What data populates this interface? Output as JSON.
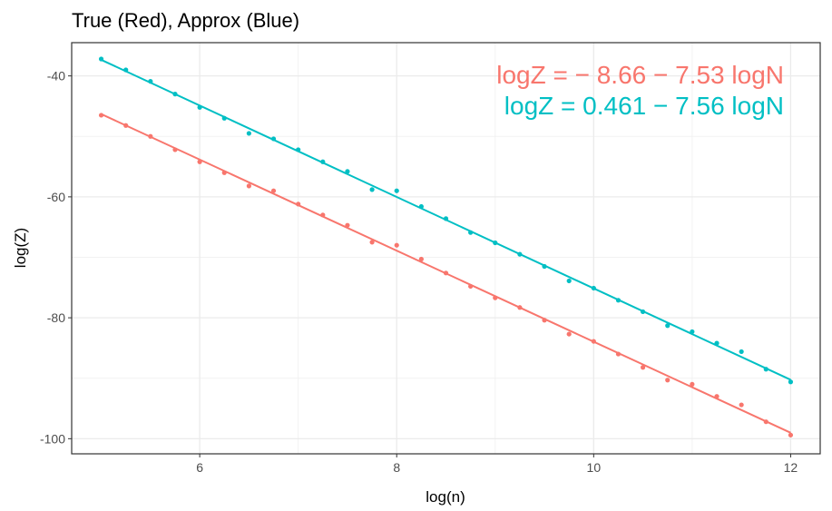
{
  "chart_data": {
    "type": "scatter",
    "title": "True (Red), Approx (Blue)",
    "xlabel": "log(n)",
    "ylabel": "log(Z)",
    "xlim": [
      4.7,
      12.3
    ],
    "ylim": [
      -102.5,
      -34.5
    ],
    "x_ticks": [
      6,
      8,
      10,
      12
    ],
    "x_tick_labels": [
      "6",
      "8",
      "10",
      "12"
    ],
    "y_ticks": [
      -100,
      -80,
      -60,
      -40
    ],
    "y_tick_labels": [
      "-100",
      "-80",
      "-60",
      "-40"
    ],
    "grid": true,
    "legend": "none",
    "series": [
      {
        "color": "#f8766d",
        "fit": {
          "intercept": -8.66,
          "slope": -7.53
        },
        "equation": "logZ = − 8.66 − 7.53 logN",
        "x": [
          5,
          5.25,
          5.5,
          5.75,
          6,
          6.25,
          6.5,
          6.75,
          7,
          7.25,
          7.5,
          7.75,
          8,
          8.25,
          8.5,
          8.75,
          9,
          9.25,
          9.5,
          9.75,
          10,
          10.25,
          10.5,
          10.75,
          11,
          11.25,
          11.5,
          11.75,
          12
        ],
        "y": [
          -46.5,
          -48.2,
          -50,
          -52.2,
          -54.2,
          -56,
          -58.2,
          -59,
          -61.2,
          -63,
          -64.7,
          -67.5,
          -68,
          -70.3,
          -72.6,
          -74.8,
          -76.7,
          -78.3,
          -80.4,
          -82.7,
          -83.9,
          -86,
          -88.2,
          -90.3,
          -91,
          -93,
          -94.4,
          -97.2,
          -99.4
        ]
      },
      {
        "color": "#00bfc4",
        "fit": {
          "intercept": 0.461,
          "slope": -7.56
        },
        "equation": "logZ = 0.461 − 7.56 logN",
        "x": [
          5,
          5.25,
          5.5,
          5.75,
          6,
          6.25,
          6.5,
          6.75,
          7,
          7.25,
          7.5,
          7.75,
          8,
          8.25,
          8.5,
          8.75,
          9,
          9.25,
          9.5,
          9.75,
          10,
          10.25,
          10.5,
          10.75,
          11,
          11.25,
          11.5,
          11.75,
          12
        ],
        "y": [
          -37.2,
          -39,
          -40.9,
          -43,
          -45.2,
          -47,
          -49.5,
          -50.4,
          -52.2,
          -54.2,
          -55.8,
          -58.8,
          -59,
          -61.6,
          -63.6,
          -65.9,
          -67.6,
          -69.5,
          -71.5,
          -73.9,
          -75.1,
          -77.1,
          -79,
          -81.3,
          -82.3,
          -84.2,
          -85.6,
          -88.5,
          -90.6
        ]
      }
    ]
  }
}
